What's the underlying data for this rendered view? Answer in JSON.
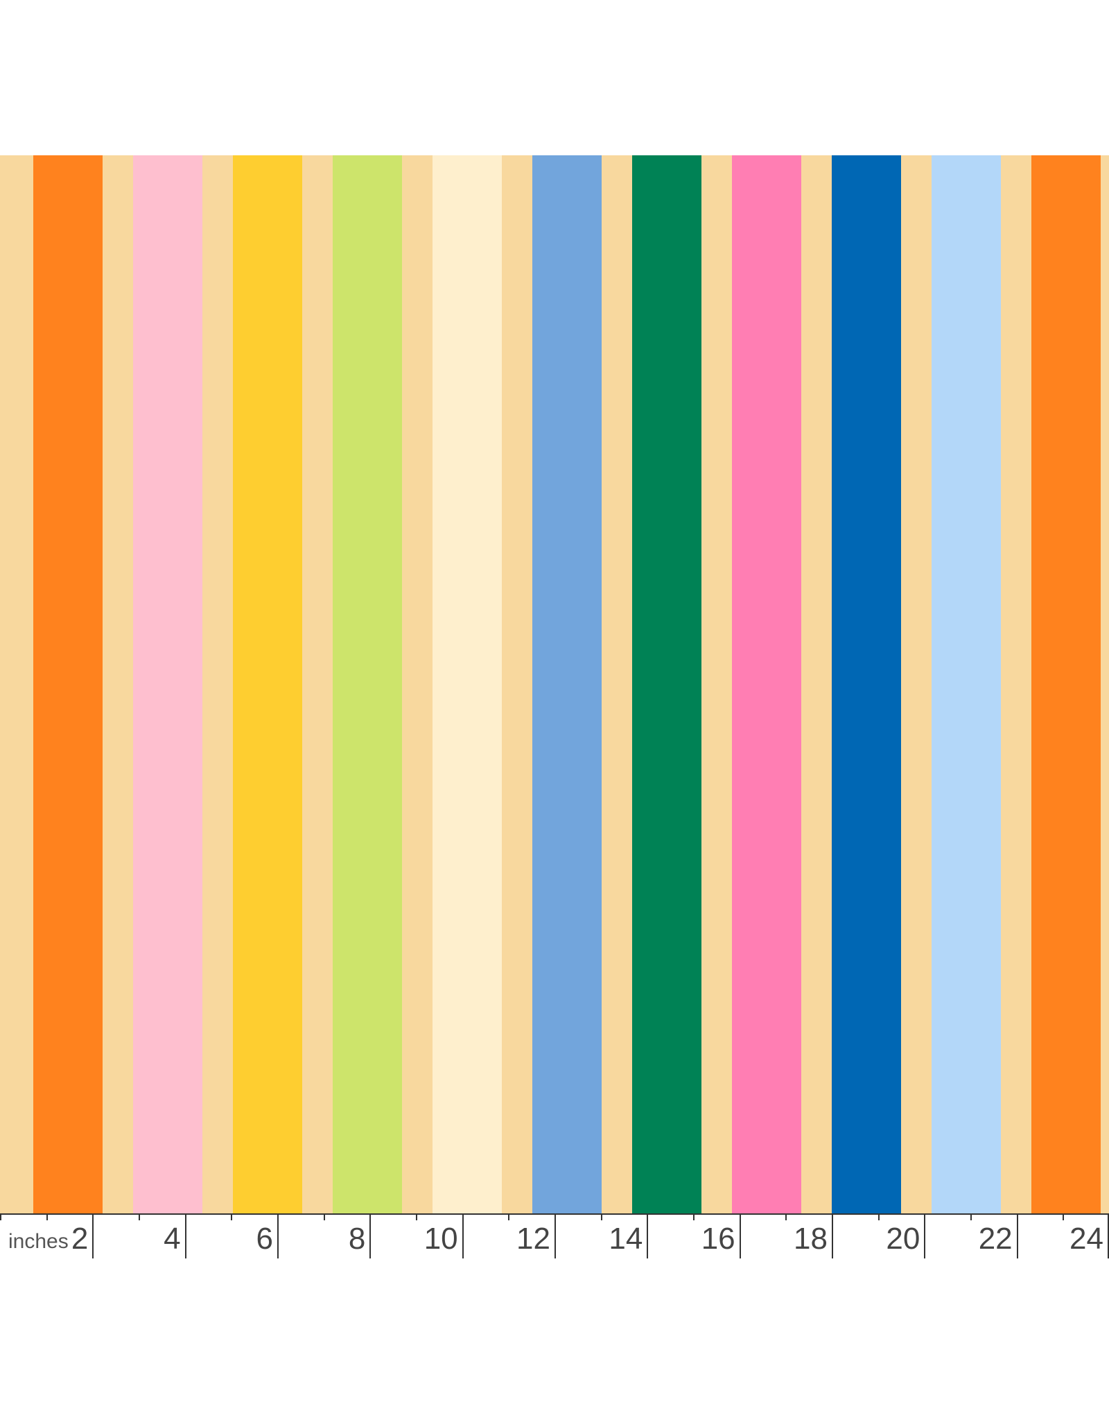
{
  "swatch": {
    "background_color": "#F8D89E",
    "stripes": [
      {
        "start_in": 0.72,
        "end_in": 2.22,
        "color": "#FF821E"
      },
      {
        "start_in": 2.88,
        "end_in": 4.38,
        "color": "#FEBFCF"
      },
      {
        "start_in": 5.04,
        "end_in": 6.54,
        "color": "#FECE30"
      },
      {
        "start_in": 7.2,
        "end_in": 8.7,
        "color": "#CDE46B"
      },
      {
        "start_in": 9.36,
        "end_in": 10.86,
        "color": "#FEEFCD"
      },
      {
        "start_in": 11.52,
        "end_in": 13.02,
        "color": "#72A5DC"
      },
      {
        "start_in": 13.68,
        "end_in": 15.18,
        "color": "#008255"
      },
      {
        "start_in": 15.84,
        "end_in": 17.34,
        "color": "#FF7EB3"
      },
      {
        "start_in": 18.0,
        "end_in": 19.5,
        "color": "#0067B4"
      },
      {
        "start_in": 20.16,
        "end_in": 21.66,
        "color": "#B3D7F9"
      },
      {
        "start_in": 22.32,
        "end_in": 23.82,
        "color": "#FF821E"
      }
    ]
  },
  "ruler": {
    "unit_label": "inches",
    "range_in": [
      0,
      24
    ],
    "major_ticks": [
      2,
      4,
      6,
      8,
      10,
      12,
      14,
      16,
      18,
      20,
      22,
      24
    ],
    "tick_labels": [
      "2",
      "4",
      "6",
      "8",
      "10",
      "12",
      "14",
      "16",
      "18",
      "20",
      "22",
      "24"
    ],
    "minor_ticks": [
      0,
      1,
      3,
      5,
      7,
      9,
      11,
      13,
      15,
      17,
      19,
      21,
      23
    ],
    "line_color": "#333333"
  }
}
